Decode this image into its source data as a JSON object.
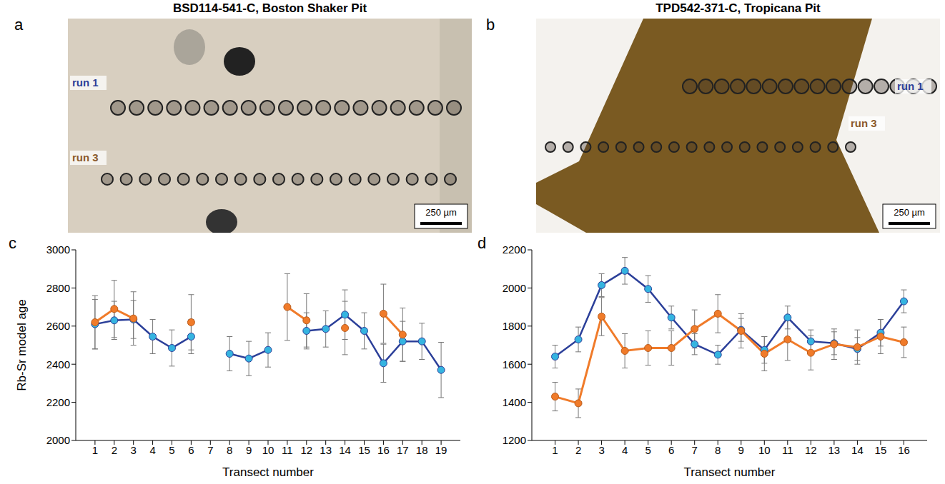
{
  "photos": [
    {
      "label": "a",
      "title": "BSD114-541-C, Boston Shaker Pit",
      "runs": [
        "run 1",
        "run 3"
      ],
      "scale_bar": "250 µm"
    },
    {
      "label": "b",
      "title": "TPD542-371-C, Tropicana Pit",
      "runs": [
        "run 1",
        "run 3"
      ],
      "scale_bar": "250 µm"
    }
  ],
  "chart_data": [
    {
      "label": "c",
      "type": "line",
      "x_label": "Transect number",
      "y_label": "Rb-Sr model age",
      "x": [
        1,
        2,
        3,
        4,
        5,
        6,
        7,
        8,
        9,
        10,
        11,
        12,
        13,
        14,
        15,
        16,
        17,
        18,
        19
      ],
      "xlim": [
        0,
        20
      ],
      "xticks": [
        1,
        2,
        3,
        4,
        5,
        6,
        7,
        8,
        9,
        10,
        11,
        12,
        13,
        14,
        15,
        16,
        17,
        18,
        19
      ],
      "ylim": [
        2000,
        3000
      ],
      "yticks": [
        2000,
        2200,
        2400,
        2600,
        2800,
        3000
      ],
      "marker": "circle",
      "series": [
        {
          "name": "run 1",
          "color": "#2b3f99",
          "values": [
            2610,
            2630,
            2635,
            2545,
            2485,
            2545,
            null,
            2455,
            2430,
            2475,
            null,
            2575,
            2585,
            2660,
            2575,
            2405,
            2520,
            2520,
            2370
          ],
          "errors": [
            130,
            100,
            100,
            90,
            95,
            90,
            null,
            90,
            90,
            90,
            null,
            95,
            95,
            130,
            95,
            100,
            105,
            95,
            145
          ]
        },
        {
          "name": "run 3",
          "color": "#f07b2a",
          "values": [
            2620,
            2690,
            2640,
            null,
            null,
            2620,
            null,
            null,
            null,
            null,
            2700,
            2630,
            null,
            2590,
            null,
            2665,
            2555,
            null,
            null
          ],
          "errors": [
            140,
            150,
            140,
            null,
            null,
            145,
            null,
            null,
            null,
            null,
            175,
            140,
            null,
            140,
            null,
            155,
            140,
            null,
            null
          ]
        }
      ]
    },
    {
      "label": "d",
      "type": "line",
      "x_label": "Transect number",
      "x": [
        1,
        2,
        3,
        4,
        5,
        6,
        7,
        8,
        9,
        10,
        11,
        12,
        13,
        14,
        15,
        16
      ],
      "xlim": [
        0,
        17
      ],
      "xticks": [
        1,
        2,
        3,
        4,
        5,
        6,
        7,
        8,
        9,
        10,
        11,
        12,
        13,
        14,
        15,
        16
      ],
      "ylim": [
        1200,
        2200
      ],
      "yticks": [
        1200,
        1400,
        1600,
        1800,
        2000,
        2200
      ],
      "marker": "circle",
      "series": [
        {
          "name": "run 1",
          "color": "#2b3f99",
          "values": [
            1640,
            1730,
            2015,
            2090,
            1995,
            1845,
            1705,
            1650,
            1780,
            1675,
            1845,
            1720,
            1710,
            1680,
            1765,
            1930
          ],
          "errors": [
            60,
            65,
            60,
            70,
            70,
            60,
            55,
            50,
            60,
            70,
            60,
            60,
            60,
            60,
            70,
            60
          ]
        },
        {
          "name": "run 3",
          "color": "#f07b2a",
          "values": [
            1430,
            1395,
            1850,
            1670,
            1685,
            1685,
            1785,
            1865,
            1775,
            1655,
            1730,
            1660,
            1705,
            1690,
            1745,
            1715
          ],
          "errors": [
            75,
            75,
            100,
            90,
            90,
            90,
            100,
            100,
            90,
            90,
            110,
            90,
            80,
            90,
            90,
            80
          ]
        }
      ]
    }
  ]
}
